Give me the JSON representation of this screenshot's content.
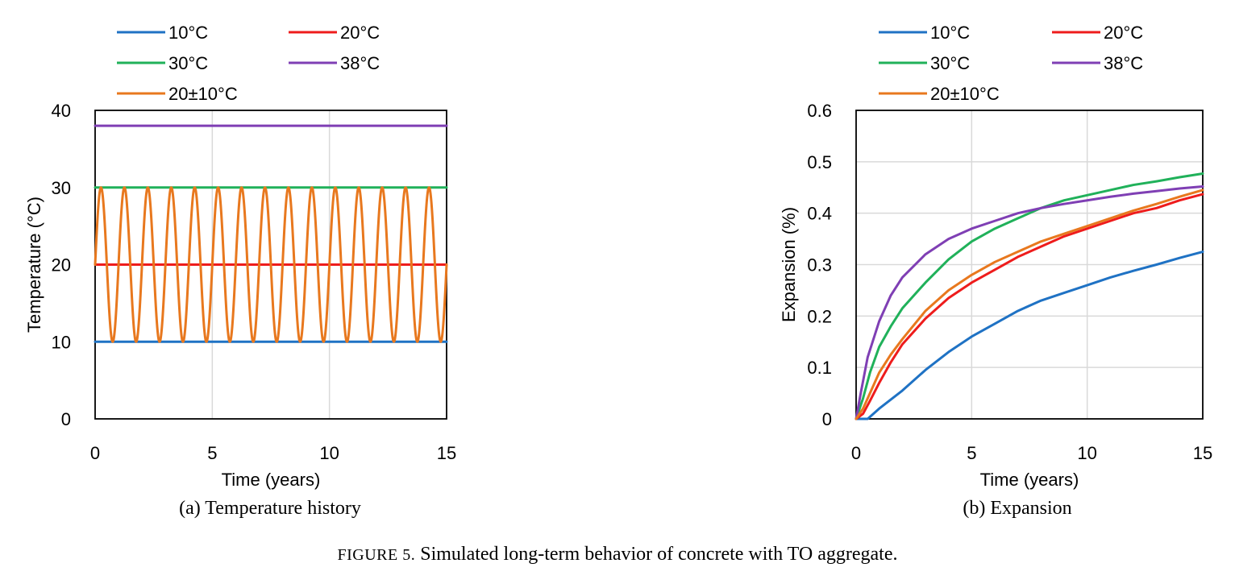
{
  "figure": {
    "caption_prefix": "Figure 5.",
    "caption_text": " Simulated long-term behavior of concrete with TO aggregate."
  },
  "chart_data": [
    {
      "type": "line",
      "subcaption": "(a) Temperature history",
      "xlabel": "Time (years)",
      "ylabel": "Temperature (°C)",
      "xlim": [
        0,
        15
      ],
      "ylim": [
        0,
        40
      ],
      "xticks": [
        "0",
        "5",
        "10",
        "15"
      ],
      "yticks": [
        "0",
        "10",
        "20",
        "30",
        "40"
      ],
      "grid": "vertical",
      "legend_position": "top",
      "series": [
        {
          "name": "10°C",
          "color": "#1f72c4",
          "x": [
            0,
            15
          ],
          "y": [
            10,
            10
          ]
        },
        {
          "name": "20°C",
          "color": "#ee1c1c",
          "x": [
            0,
            15
          ],
          "y": [
            20,
            20
          ]
        },
        {
          "name": "30°C",
          "color": "#20b15a",
          "x": [
            0,
            15
          ],
          "y": [
            30,
            30
          ]
        },
        {
          "name": "38°C",
          "color": "#7f3fb4",
          "x": [
            0,
            15
          ],
          "y": [
            38,
            38
          ]
        },
        {
          "name": "20±10°C",
          "color": "#e8781e",
          "function": "sinusoid",
          "mean": 20,
          "amplitude": 10,
          "period_years": 1,
          "x_range": [
            0,
            15
          ]
        }
      ]
    },
    {
      "type": "line",
      "subcaption": "(b) Expansion",
      "xlabel": "Time (years)",
      "ylabel": "Expansion (%)",
      "xlim": [
        0,
        15
      ],
      "ylim": [
        0,
        0.6
      ],
      "xticks": [
        "0",
        "5",
        "10",
        "15"
      ],
      "yticks": [
        "0",
        "0.1",
        "0.2",
        "0.3",
        "0.4",
        "0.5",
        "0.6"
      ],
      "grid": "both",
      "legend_position": "top",
      "series": [
        {
          "name": "10°C",
          "color": "#1f72c4",
          "x": [
            0,
            0.5,
            1,
            2,
            3,
            4,
            5,
            6,
            7,
            8,
            9,
            10,
            11,
            12,
            13,
            14,
            15
          ],
          "y": [
            0,
            0,
            0.02,
            0.055,
            0.095,
            0.13,
            0.16,
            0.185,
            0.21,
            0.23,
            0.245,
            0.26,
            0.275,
            0.288,
            0.3,
            0.313,
            0.325
          ]
        },
        {
          "name": "20°C",
          "color": "#ee1c1c",
          "x": [
            0,
            0.3,
            0.6,
            1,
            1.5,
            2,
            3,
            4,
            5,
            6,
            7,
            8,
            9,
            10,
            11,
            12,
            13,
            14,
            15
          ],
          "y": [
            0,
            0.01,
            0.035,
            0.07,
            0.11,
            0.145,
            0.195,
            0.235,
            0.265,
            0.29,
            0.315,
            0.335,
            0.355,
            0.37,
            0.385,
            0.4,
            0.41,
            0.425,
            0.437
          ]
        },
        {
          "name": "30°C",
          "color": "#20b15a",
          "x": [
            0,
            0.3,
            0.6,
            1,
            1.5,
            2,
            3,
            4,
            5,
            6,
            7,
            8,
            9,
            10,
            11,
            12,
            13,
            14,
            15
          ],
          "y": [
            0,
            0.04,
            0.09,
            0.14,
            0.18,
            0.215,
            0.265,
            0.31,
            0.345,
            0.37,
            0.39,
            0.41,
            0.425,
            0.435,
            0.445,
            0.455,
            0.462,
            0.47,
            0.477
          ]
        },
        {
          "name": "38°C",
          "color": "#7f3fb4",
          "x": [
            0,
            0.2,
            0.5,
            1,
            1.5,
            2,
            3,
            4,
            5,
            6,
            7,
            8,
            9,
            10,
            11,
            12,
            13,
            14,
            15
          ],
          "y": [
            0,
            0.05,
            0.12,
            0.19,
            0.24,
            0.275,
            0.32,
            0.35,
            0.37,
            0.385,
            0.4,
            0.41,
            0.418,
            0.425,
            0.432,
            0.438,
            0.443,
            0.448,
            0.452
          ]
        },
        {
          "name": "20±10°C",
          "color": "#e8781e",
          "x": [
            0,
            0.3,
            0.6,
            1,
            1.5,
            2,
            3,
            4,
            5,
            6,
            7,
            8,
            9,
            10,
            11,
            12,
            13,
            14,
            15
          ],
          "y": [
            0,
            0.02,
            0.05,
            0.09,
            0.125,
            0.155,
            0.21,
            0.25,
            0.28,
            0.305,
            0.325,
            0.345,
            0.36,
            0.375,
            0.39,
            0.405,
            0.418,
            0.432,
            0.445
          ]
        }
      ]
    }
  ]
}
